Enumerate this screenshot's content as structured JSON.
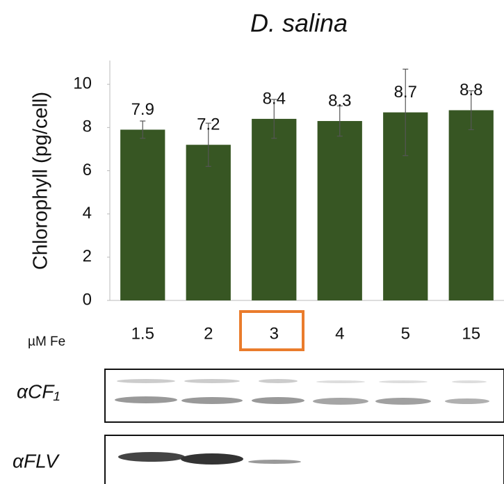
{
  "chart_data": {
    "type": "bar",
    "title": "D. salina",
    "y_label": "Chlorophyll (pg/cell)",
    "x_label": "µM Fe",
    "categories": [
      "1.5",
      "2",
      "3",
      "4",
      "5",
      "15"
    ],
    "values": [
      7.9,
      7.2,
      8.4,
      8.3,
      8.7,
      8.8
    ],
    "errors": [
      0.4,
      1.0,
      0.9,
      0.7,
      2.0,
      0.9
    ],
    "color": "#375623",
    "ylim": [
      0,
      11.1
    ],
    "yticks": [
      0,
      2,
      4,
      6,
      8,
      10
    ],
    "grid": false,
    "blots": [
      "αCF₁",
      "αFLV"
    ]
  }
}
